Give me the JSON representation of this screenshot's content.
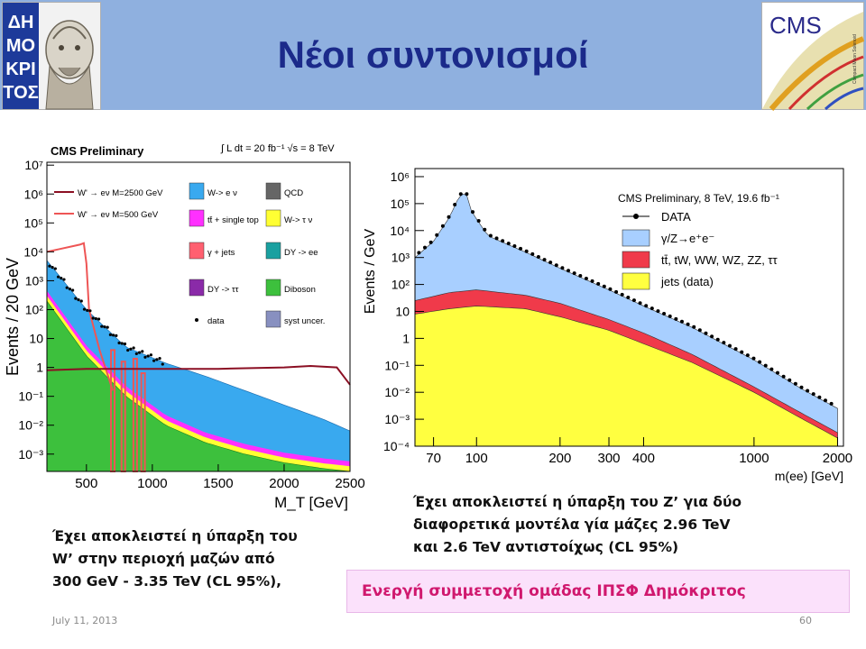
{
  "header": {
    "title": "Νέοι συντονισμοί",
    "logo_left_text": "ΔΗΜΟΚΡΙΤΟΣ",
    "logo_right_text": "CMS",
    "logo_right_subtext": "Compact Muon Solenoid",
    "colors": {
      "bar": "#8fb0df",
      "title": "#1b2a8a"
    }
  },
  "chart_left": {
    "chart_data": {
      "type": "area",
      "title": "CMS Preliminary",
      "subtitle": "∫ L dt = 20 fb⁻¹   √s = 8 TeV",
      "xlabel": "M_T [GeV]",
      "ylabel": "Events / 20 GeV",
      "x_ticks": [
        "500",
        "1000",
        "1500",
        "2000",
        "2500"
      ],
      "y_ticks": [
        "10⁻³",
        "10⁻²",
        "10⁻¹",
        "1",
        "10",
        "10²",
        "10³",
        "10⁴",
        "10⁵",
        "10⁶",
        "10⁷"
      ],
      "xlim": [
        200,
        2500
      ],
      "ylim_log10": [
        -3.6,
        7.1
      ],
      "legend": [
        {
          "label": "W' → eν M=2500 GeV",
          "color": "#8b0f23",
          "kind": "line"
        },
        {
          "label": "W' → eν M=500 GeV",
          "color": "#ee5555",
          "kind": "line"
        },
        {
          "label": "W-> e ν",
          "color": "#39a9ef",
          "kind": "box"
        },
        {
          "label": "tt̄ + single top",
          "color": "#ff30ff",
          "kind": "box"
        },
        {
          "label": "γ + jets",
          "color": "#ff6070",
          "kind": "box"
        },
        {
          "label": "DY -> ττ",
          "color": "#8a2aa8",
          "kind": "box"
        },
        {
          "label": "QCD",
          "color": "#666666",
          "kind": "box"
        },
        {
          "label": "W-> τ ν",
          "color": "#ffff33",
          "kind": "box"
        },
        {
          "label": "DY -> ee",
          "color": "#1aa0a0",
          "kind": "box"
        },
        {
          "label": "Diboson",
          "color": "#3dc03d",
          "kind": "box"
        },
        {
          "label": "data",
          "color": "#000000",
          "kind": "dot"
        },
        {
          "label": "syst uncer.",
          "color": "#8890c0",
          "kind": "hatch"
        }
      ],
      "series": [
        {
          "name": "W-> e ν",
          "x": [
            200,
            500,
            800,
            1100,
            1400,
            1700,
            2000,
            2300,
            2500
          ],
          "log10y": [
            3.7,
            2.0,
            0.7,
            0.15,
            -0.3,
            -0.8,
            -1.3,
            -1.8,
            -2.2
          ]
        },
        {
          "name": "Diboson",
          "x": [
            200,
            500,
            800,
            1100,
            1400,
            1700,
            2000,
            2300,
            2500
          ],
          "log10y": [
            2.3,
            0.4,
            -1.0,
            -2.0,
            -2.6,
            -3.0,
            -3.3,
            -3.5,
            -3.6
          ]
        },
        {
          "name": "W' → eν M=500 GeV",
          "x": [
            200,
            300,
            400,
            450,
            480,
            500,
            520,
            600,
            700
          ],
          "log10y": [
            4.0,
            4.1,
            4.2,
            4.25,
            4.3,
            3.6,
            2.0,
            0.6,
            -0.8
          ]
        },
        {
          "name": "W' → eν M=2500 GeV",
          "x": [
            200,
            500,
            1000,
            1500,
            2000,
            2200,
            2400,
            2500
          ],
          "log10y": [
            -0.1,
            -0.05,
            -0.05,
            -0.05,
            0.0,
            0.05,
            0.0,
            -0.6
          ]
        }
      ]
    },
    "caption": [
      "Έχει αποκλειστεί η ύπαρξη του",
      "W’ στην περιοχή μαζών από",
      "300 GeV - 3.35 TeV (CL 95%),"
    ]
  },
  "chart_right": {
    "chart_data": {
      "type": "area",
      "title": "CMS Preliminary, 8 TeV, 19.6 fb⁻¹",
      "xlabel": "m(ee) [GeV]",
      "ylabel": "Events / GeV",
      "x_ticks": [
        "70",
        "100",
        "200",
        "300",
        "400",
        "1000",
        "2000"
      ],
      "x_tick_values": [
        70,
        100,
        200,
        300,
        400,
        1000,
        2000
      ],
      "y_ticks": [
        "10⁻⁴",
        "10⁻³",
        "10⁻²",
        "10⁻¹",
        "1",
        "10",
        "10²",
        "10³",
        "10⁴",
        "10⁵",
        "10⁶"
      ],
      "xlim": [
        60,
        2100
      ],
      "ylim_log10": [
        -4,
        6.3
      ],
      "log_x": true,
      "legend": [
        {
          "label": "DATA",
          "color": "#000000",
          "kind": "dot"
        },
        {
          "label": "γ/Z→e⁺e⁻",
          "color": "#a8cfff",
          "kind": "box"
        },
        {
          "label": "tt̄, tW, WW, WZ, ZZ, ττ",
          "color": "#f03a4a",
          "kind": "box"
        },
        {
          "label": "jets (data)",
          "color": "#ffff40",
          "kind": "box"
        }
      ],
      "series": [
        {
          "name": "γ/Z→e⁺e⁻",
          "x": [
            60,
            70,
            80,
            86,
            91,
            96,
            110,
            150,
            200,
            300,
            400,
            600,
            1000,
            1500,
            2000
          ],
          "log10y": [
            3.0,
            3.6,
            4.5,
            5.2,
            5.5,
            4.7,
            3.8,
            3.2,
            2.6,
            1.8,
            1.2,
            0.4,
            -0.8,
            -1.9,
            -2.6
          ]
        },
        {
          "name": "tt̄, tW, WW, WZ, ZZ, ττ",
          "x": [
            60,
            80,
            100,
            150,
            200,
            300,
            400,
            600,
            1000,
            1500,
            2000
          ],
          "log10y": [
            1.4,
            1.7,
            1.8,
            1.6,
            1.3,
            0.7,
            0.2,
            -0.6,
            -1.8,
            -2.8,
            -3.5
          ]
        },
        {
          "name": "jets (data)",
          "x": [
            60,
            80,
            100,
            150,
            200,
            300,
            400,
            600,
            1000,
            1500,
            2000
          ],
          "log10y": [
            0.9,
            1.1,
            1.2,
            1.1,
            0.8,
            0.3,
            -0.2,
            -0.9,
            -2.0,
            -3.0,
            -3.7
          ]
        }
      ]
    },
    "caption": [
      "Έχει αποκλειστεί η ύπαρξη του Z’ για δύο",
      "διαφορετικά μοντέλα  γία μάζες 2.96 TeV",
      "και 2.6 TeV αντιστοίχως (CL 95%)"
    ]
  },
  "highlight": {
    "text": "Ενεργή συμμετοχή ομάδας ΙΠΣΦ Δημόκριτος",
    "color": "#d0186e",
    "background": "#fbe1fb"
  },
  "footer": {
    "date": "July 11, 2013",
    "page": "60"
  }
}
